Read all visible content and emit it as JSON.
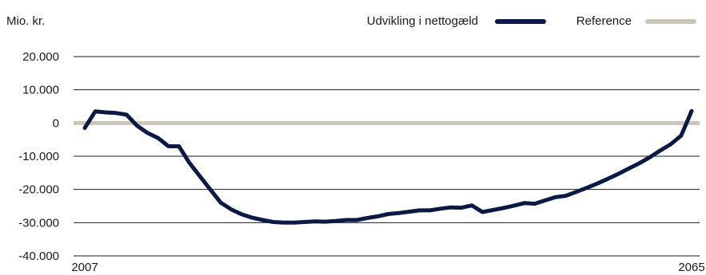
{
  "chart_data": {
    "type": "line",
    "ylabel": "Mio. kr.",
    "ylim": [
      -40000,
      20000
    ],
    "yticks": [
      20000,
      10000,
      0,
      -10000,
      -20000,
      -30000,
      -40000
    ],
    "ytick_labels": [
      "20.000",
      "10.000",
      "0",
      "-10.000",
      "-20.000",
      "-30.000",
      "-40.000"
    ],
    "xlim": [
      2007,
      2065
    ],
    "xtick_labels": [
      "2007",
      "2065"
    ],
    "grid": true,
    "legend_position": "top-right",
    "series": [
      {
        "name": "Udvikling i nettogæld",
        "color": "#0b1a45",
        "x": [
          2007,
          2008,
          2009,
          2010,
          2011,
          2012,
          2013,
          2014,
          2015,
          2016,
          2017,
          2018,
          2019,
          2020,
          2021,
          2022,
          2023,
          2024,
          2025,
          2026,
          2027,
          2028,
          2029,
          2030,
          2031,
          2032,
          2033,
          2034,
          2035,
          2036,
          2037,
          2038,
          2039,
          2040,
          2041,
          2042,
          2043,
          2044,
          2045,
          2046,
          2047,
          2048,
          2049,
          2050,
          2051,
          2052,
          2053,
          2054,
          2055,
          2056,
          2057,
          2058,
          2059,
          2060,
          2061,
          2062,
          2063,
          2064,
          2065
        ],
        "values": [
          -1500,
          3500,
          3200,
          3000,
          2500,
          -800,
          -3000,
          -4500,
          -7000,
          -7000,
          -12000,
          -16000,
          -20000,
          -24000,
          -26000,
          -27500,
          -28500,
          -29200,
          -29800,
          -30000,
          -30000,
          -29800,
          -29600,
          -29700,
          -29500,
          -29200,
          -29200,
          -28600,
          -28100,
          -27400,
          -27100,
          -26700,
          -26300,
          -26300,
          -25800,
          -25400,
          -25500,
          -24800,
          -26800,
          -26200,
          -25600,
          -24900,
          -24100,
          -24300,
          -23300,
          -22300,
          -21900,
          -20700,
          -19500,
          -18200,
          -16800,
          -15300,
          -13700,
          -12100,
          -10300,
          -8300,
          -6400,
          -3800,
          3600
        ]
      },
      {
        "name": "Reference",
        "color": "#cbc5bb",
        "x": [
          2007,
          2065
        ],
        "values": [
          0,
          0
        ]
      }
    ]
  }
}
